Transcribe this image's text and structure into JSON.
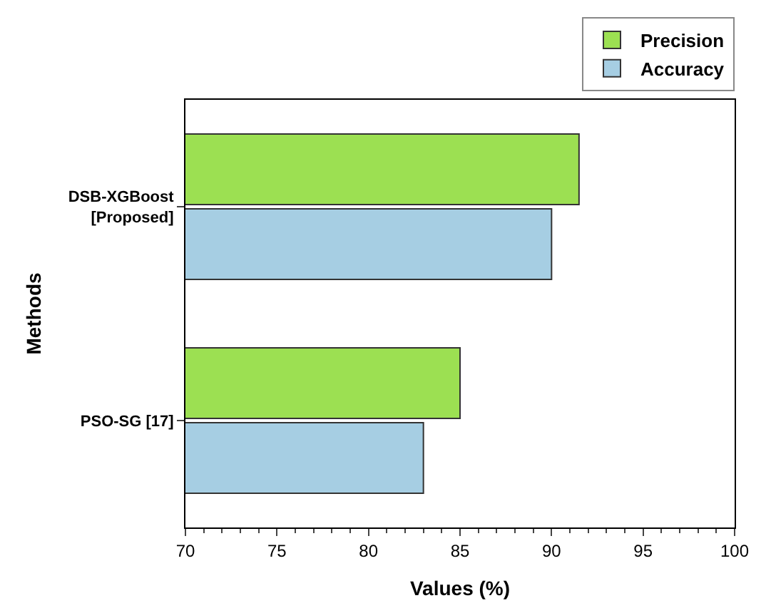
{
  "chart_data": {
    "type": "bar",
    "orientation": "horizontal",
    "xlabel": "Values (%)",
    "ylabel": "Methods",
    "categories": [
      "DSB-XGBoost\n[Proposed]",
      "PSO-SG [17]"
    ],
    "series": [
      {
        "name": "Precision",
        "color": "#9ce052",
        "values": [
          91.5,
          85
        ]
      },
      {
        "name": "Accuracy",
        "color": "#a6cee3",
        "values": [
          90,
          83
        ]
      }
    ],
    "xlim": [
      70,
      100
    ],
    "xticks": [
      70,
      75,
      80,
      85,
      90,
      95,
      100
    ],
    "legend": "top right"
  }
}
